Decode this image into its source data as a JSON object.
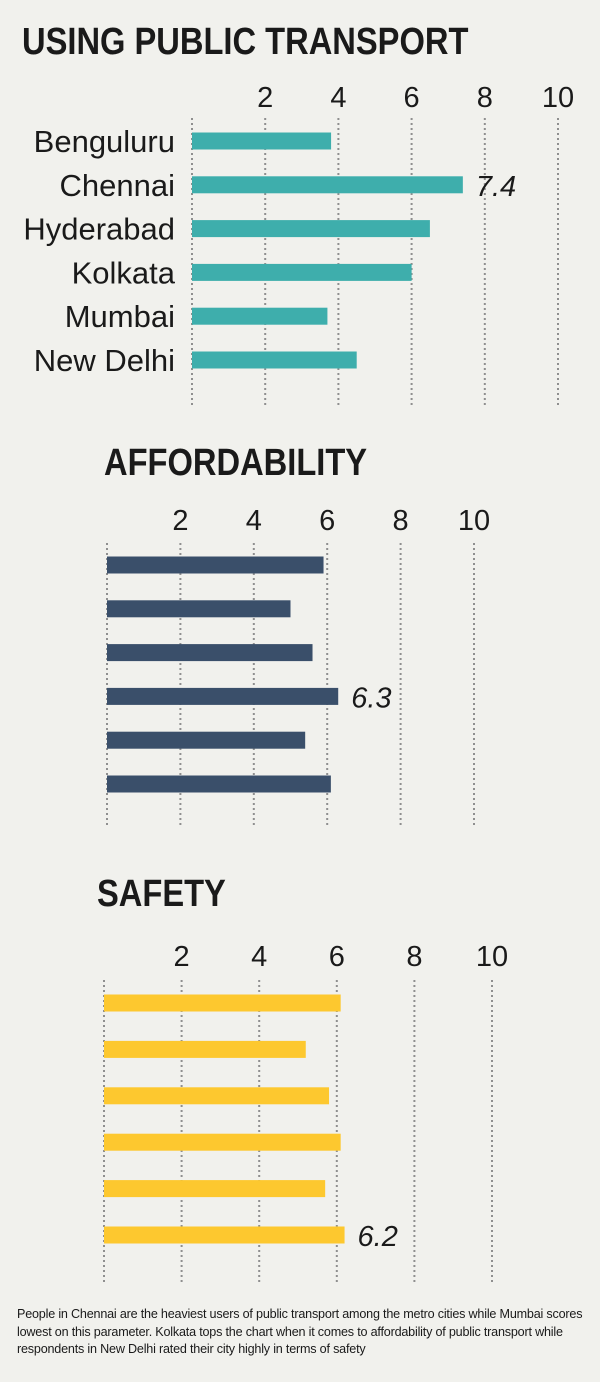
{
  "chart_data": [
    {
      "type": "bar",
      "orientation": "horizontal",
      "title": "USING PUBLIC TRANSPORT",
      "categories": [
        "Benguluru",
        "Chennai",
        "Hyderabad",
        "Kolkata",
        "Mumbai",
        "New Delhi"
      ],
      "values": [
        3.8,
        7.4,
        6.5,
        6.0,
        3.7,
        4.5
      ],
      "xlim": [
        0,
        10
      ],
      "tick_labels": [
        "2",
        "4",
        "6",
        "8",
        "10"
      ],
      "ticks": [
        2,
        4,
        6,
        8,
        10
      ],
      "grid": "vertical dotted",
      "color": "#3eaeac",
      "annotation": {
        "category_index": 1,
        "text": "7.4"
      }
    },
    {
      "type": "bar",
      "orientation": "horizontal",
      "title": "AFFORDABILITY",
      "categories": [
        "Benguluru",
        "Chennai",
        "Hyderabad",
        "Kolkata",
        "Mumbai",
        "New Delhi"
      ],
      "values": [
        5.9,
        5.0,
        5.6,
        6.3,
        5.4,
        6.1
      ],
      "xlim": [
        0,
        10
      ],
      "tick_labels": [
        "2",
        "4",
        "6",
        "8",
        "10"
      ],
      "ticks": [
        2,
        4,
        6,
        8,
        10
      ],
      "grid": "vertical dotted",
      "color": "#3a4f6a",
      "annotation": {
        "category_index": 3,
        "text": "6.3"
      }
    },
    {
      "type": "bar",
      "orientation": "horizontal",
      "title": "SAFETY",
      "categories": [
        "Benguluru",
        "Chennai",
        "Hyderabad",
        "Kolkata",
        "Mumbai",
        "New Delhi"
      ],
      "values": [
        6.1,
        5.2,
        5.8,
        6.1,
        5.7,
        6.2
      ],
      "xlim": [
        0,
        10
      ],
      "tick_labels": [
        "2",
        "4",
        "6",
        "8",
        "10"
      ],
      "ticks": [
        2,
        4,
        6,
        8,
        10
      ],
      "grid": "vertical dotted",
      "color": "#fdc82f",
      "annotation": {
        "category_index": 5,
        "text": "6.2"
      }
    }
  ],
  "footnote": "People in Chennai are the heaviest users of public transport among the metro cities while Mumbai scores lowest on this parameter. Kolkata tops the chart when it comes to affordability of public transport while respondents in New Delhi rated their city highly in terms of safety"
}
